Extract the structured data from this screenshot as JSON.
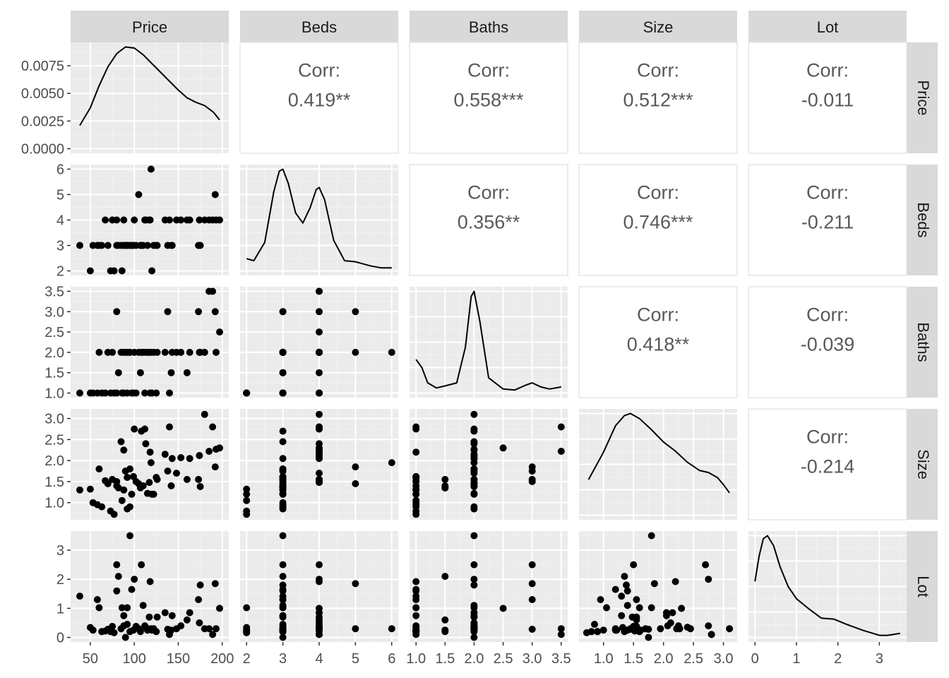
{
  "variables": [
    "Price",
    "Beds",
    "Baths",
    "Size",
    "Lot"
  ],
  "correlation_label": "Corr:",
  "chart_data": {
    "type": "scatter",
    "subtype": "pairs-plot (scatterplot matrix)",
    "title": "",
    "layout": {
      "lower": "scatter",
      "diagonal": "density",
      "upper": "correlation"
    },
    "correlations": [
      {
        "row": "Price",
        "col": "Beds",
        "value": "0.419**"
      },
      {
        "row": "Price",
        "col": "Baths",
        "value": "0.558***"
      },
      {
        "row": "Price",
        "col": "Size",
        "value": "0.512***"
      },
      {
        "row": "Price",
        "col": "Lot",
        "value": "-0.011"
      },
      {
        "row": "Beds",
        "col": "Baths",
        "value": "0.356**"
      },
      {
        "row": "Beds",
        "col": "Size",
        "value": "0.746***"
      },
      {
        "row": "Beds",
        "col": "Lot",
        "value": "-0.211"
      },
      {
        "row": "Baths",
        "col": "Size",
        "value": "0.418**"
      },
      {
        "row": "Baths",
        "col": "Lot",
        "value": "-0.039"
      },
      {
        "row": "Size",
        "col": "Lot",
        "value": "-0.214"
      }
    ],
    "axes": {
      "Price": {
        "range": [
          35,
          200
        ],
        "ticks": [
          "50",
          "100",
          "150",
          "200"
        ]
      },
      "Beds": {
        "range": [
          2,
          6
        ],
        "ticks": [
          "2",
          "3",
          "4",
          "5",
          "6"
        ]
      },
      "Baths": {
        "range": [
          1.0,
          3.5
        ],
        "ticks": [
          "1.0",
          "1.5",
          "2.0",
          "2.5",
          "3.0",
          "3.5"
        ]
      },
      "Size": {
        "range": [
          0.7,
          3.12
        ],
        "ticks": [
          "1.0",
          "1.5",
          "2.0",
          "2.5",
          "3.0"
        ]
      },
      "Lot": {
        "range": [
          0,
          3.5
        ],
        "ticks": [
          "0",
          "1",
          "2",
          "3"
        ]
      }
    },
    "density_axis": {
      "range": [
        0,
        0.0092
      ],
      "ticks": [
        "0.0000",
        "0.0025",
        "0.0050",
        "0.0075"
      ]
    },
    "densities": {
      "Price": [
        [
          38,
          0.0021
        ],
        [
          50,
          0.0037
        ],
        [
          60,
          0.0057
        ],
        [
          70,
          0.0074
        ],
        [
          80,
          0.0086
        ],
        [
          90,
          0.0092
        ],
        [
          100,
          0.0091
        ],
        [
          110,
          0.0085
        ],
        [
          120,
          0.0077
        ],
        [
          130,
          0.0069
        ],
        [
          140,
          0.0061
        ],
        [
          150,
          0.0053
        ],
        [
          160,
          0.0046
        ],
        [
          170,
          0.0042
        ],
        [
          180,
          0.0039
        ],
        [
          190,
          0.0033
        ],
        [
          197,
          0.0026
        ]
      ],
      "Beds": [
        [
          2,
          0.12
        ],
        [
          2.2,
          0.1
        ],
        [
          2.5,
          0.28
        ],
        [
          2.75,
          0.78
        ],
        [
          2.9,
          0.98
        ],
        [
          3.0,
          1.0
        ],
        [
          3.15,
          0.86
        ],
        [
          3.35,
          0.57
        ],
        [
          3.55,
          0.47
        ],
        [
          3.75,
          0.62
        ],
        [
          3.92,
          0.8
        ],
        [
          4.0,
          0.82
        ],
        [
          4.15,
          0.7
        ],
        [
          4.4,
          0.3
        ],
        [
          4.7,
          0.1
        ],
        [
          5.0,
          0.09
        ],
        [
          5.4,
          0.05
        ],
        [
          5.7,
          0.03
        ],
        [
          6.0,
          0.03
        ]
      ],
      "Baths": [
        [
          1.0,
          0.33
        ],
        [
          1.1,
          0.25
        ],
        [
          1.2,
          0.1
        ],
        [
          1.35,
          0.05
        ],
        [
          1.5,
          0.07
        ],
        [
          1.7,
          0.1
        ],
        [
          1.85,
          0.45
        ],
        [
          1.95,
          0.95
        ],
        [
          2.0,
          1.0
        ],
        [
          2.1,
          0.7
        ],
        [
          2.25,
          0.15
        ],
        [
          2.5,
          0.04
        ],
        [
          2.7,
          0.03
        ],
        [
          2.9,
          0.08
        ],
        [
          3.0,
          0.1
        ],
        [
          3.15,
          0.06
        ],
        [
          3.3,
          0.04
        ],
        [
          3.5,
          0.06
        ]
      ],
      "Size": [
        [
          0.75,
          0.35
        ],
        [
          1.0,
          0.62
        ],
        [
          1.2,
          0.88
        ],
        [
          1.35,
          0.98
        ],
        [
          1.45,
          1.0
        ],
        [
          1.6,
          0.95
        ],
        [
          1.8,
          0.84
        ],
        [
          2.0,
          0.72
        ],
        [
          2.2,
          0.63
        ],
        [
          2.4,
          0.52
        ],
        [
          2.6,
          0.44
        ],
        [
          2.75,
          0.42
        ],
        [
          2.9,
          0.37
        ],
        [
          3.0,
          0.3
        ],
        [
          3.1,
          0.22
        ]
      ],
      "Lot": [
        [
          0,
          0.55
        ],
        [
          0.1,
          0.8
        ],
        [
          0.2,
          0.97
        ],
        [
          0.3,
          1.0
        ],
        [
          0.45,
          0.9
        ],
        [
          0.6,
          0.7
        ],
        [
          0.8,
          0.5
        ],
        [
          1.0,
          0.38
        ],
        [
          1.3,
          0.28
        ],
        [
          1.6,
          0.19
        ],
        [
          1.9,
          0.18
        ],
        [
          2.2,
          0.13
        ],
        [
          2.6,
          0.07
        ],
        [
          3.0,
          0.02
        ],
        [
          3.2,
          0.02
        ],
        [
          3.5,
          0.04
        ]
      ]
    },
    "points": {
      "Price": [
        38,
        50,
        53,
        58,
        60,
        63,
        67,
        70,
        73,
        75,
        77,
        80,
        80,
        82,
        85,
        86,
        88,
        88,
        90,
        92,
        92,
        95,
        95,
        97,
        99,
        100,
        102,
        105,
        107,
        108,
        110,
        112,
        113,
        115,
        117,
        118,
        119,
        120,
        122,
        125,
        126,
        135,
        138,
        140,
        142,
        143,
        148,
        153,
        160,
        163,
        173,
        174,
        175,
        180,
        185,
        189,
        192,
        193,
        197
      ],
      "Beds": [
        3,
        2,
        3,
        3,
        3,
        3,
        4,
        3,
        2,
        4,
        2,
        4,
        3,
        3,
        3,
        2,
        4,
        3,
        3,
        3,
        3,
        3,
        3,
        3,
        3,
        4,
        3,
        5,
        3,
        3,
        3,
        4,
        4,
        3,
        4,
        4,
        6,
        2,
        3,
        3,
        3,
        4,
        3,
        4,
        3,
        3,
        4,
        4,
        4,
        4,
        3,
        4,
        3,
        4,
        4,
        4,
        5,
        4,
        4
      ],
      "Baths": [
        1,
        1,
        1,
        1,
        2,
        1,
        1,
        2,
        1,
        2,
        1,
        3,
        1,
        1.5,
        2,
        1,
        2,
        1,
        2,
        1,
        2,
        2,
        2,
        1,
        1,
        2,
        1,
        2,
        1.5,
        2,
        2,
        1,
        2,
        2,
        2,
        1,
        2,
        1,
        2,
        1,
        2,
        2,
        3,
        1,
        1.5,
        2,
        2,
        2,
        1.5,
        2,
        3,
        2,
        2,
        2,
        3.5,
        3.5,
        3,
        2,
        2.5
      ],
      "Size": [
        1.3,
        1.32,
        1.0,
        0.95,
        1.8,
        0.9,
        1.52,
        1.45,
        0.8,
        1.55,
        0.72,
        1.5,
        1.4,
        1.35,
        2.45,
        1.05,
        2.25,
        1.3,
        1.75,
        1.6,
        0.85,
        1.8,
        0.9,
        1.2,
        1.62,
        2.75,
        1.5,
        1.45,
        1.35,
        2.7,
        1.4,
        2.75,
        2.4,
        1.22,
        1.48,
        2.2,
        1.95,
        1.2,
        1.2,
        1.6,
        1.55,
        2.15,
        1.75,
        2.8,
        1.4,
        2.05,
        1.7,
        2.07,
        1.55,
        2.05,
        1.55,
        2.12,
        1.38,
        3.1,
        2.22,
        2.8,
        1.85,
        2.27,
        2.3
      ],
      "Lot": [
        1.42,
        0.34,
        0.25,
        1.3,
        1.02,
        0.2,
        0.22,
        0.28,
        0.2,
        0.38,
        0.16,
        2.5,
        1.6,
        2.1,
        0.3,
        1.02,
        0.4,
        0.75,
        0.0,
        1.02,
        0.45,
        3.5,
        0.2,
        1.65,
        0.25,
        2.0,
        0.38,
        0.3,
        0.2,
        2.5,
        1.1,
        0.4,
        0.35,
        0.25,
        0.7,
        1.92,
        0.3,
        0.25,
        0.3,
        0.2,
        0.7,
        0.85,
        0.28,
        0.1,
        0.25,
        0.75,
        0.3,
        0.4,
        0.6,
        0.85,
        1.3,
        0.5,
        1.8,
        0.3,
        0.3,
        0.1,
        1.85,
        0.3,
        1.0
      ]
    }
  }
}
